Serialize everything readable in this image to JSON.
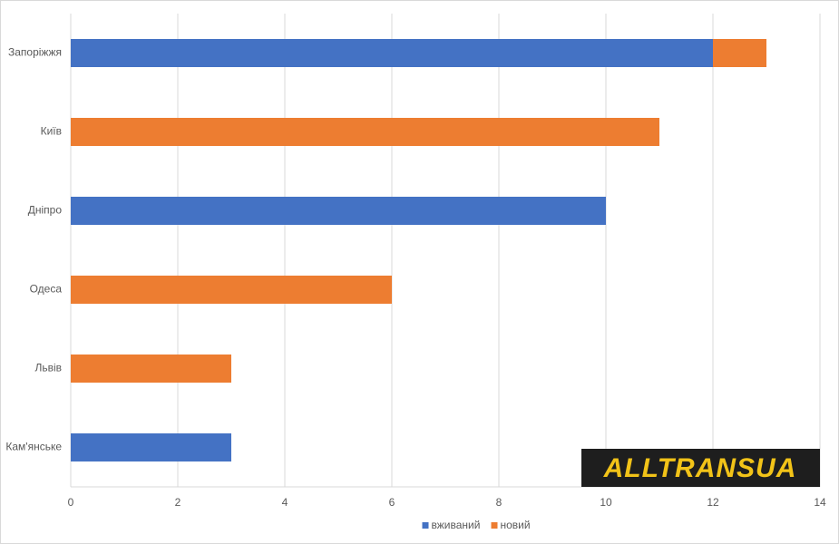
{
  "chart_data": {
    "type": "stacked_barh",
    "categories": [
      "Запоріжжя",
      "Київ",
      "Дніпро",
      "Одеса",
      "Львів",
      "Кам'янське"
    ],
    "series": [
      {
        "name": "вживаний",
        "color": "#4472c4",
        "values": [
          12,
          0,
          10,
          0,
          0,
          3
        ]
      },
      {
        "name": "новий",
        "color": "#ed7d31",
        "values": [
          1,
          11,
          0,
          6,
          3,
          0
        ]
      }
    ],
    "xlim": [
      0,
      14
    ],
    "xticks": [
      0,
      2,
      4,
      6,
      8,
      10,
      12,
      14
    ],
    "grid": true,
    "legend": "bottom",
    "logo": "ALLTRANSUA"
  }
}
